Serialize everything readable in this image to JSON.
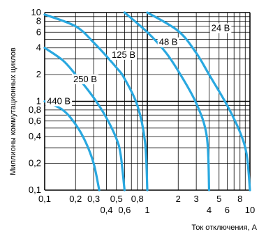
{
  "chart_data": {
    "type": "line",
    "xlabel": "Ток отключения, А",
    "ylabel": "Миллионы коммутационных циклов",
    "xscale": "log",
    "yscale": "log",
    "xlim": [
      0.1,
      10
    ],
    "ylim": [
      0.1,
      10
    ],
    "grid": true,
    "x_tick_labels": [
      {
        "value": 0.1,
        "label": "0,1",
        "row": 1
      },
      {
        "value": 0.2,
        "label": "0,2",
        "row": 1
      },
      {
        "value": 0.3,
        "label": "0,3",
        "row": 1
      },
      {
        "value": 0.4,
        "label": "0,4",
        "row": 2
      },
      {
        "value": 0.5,
        "label": "0,5",
        "row": 1
      },
      {
        "value": 0.6,
        "label": "0,6",
        "row": 2
      },
      {
        "value": 0.8,
        "label": "0,8",
        "row": 1
      },
      {
        "value": 1,
        "label": "1",
        "row": 2
      },
      {
        "value": 2,
        "label": "2",
        "row": 1
      },
      {
        "value": 3,
        "label": "3",
        "row": 1
      },
      {
        "value": 4,
        "label": "4",
        "row": 2
      },
      {
        "value": 5,
        "label": "5",
        "row": 1
      },
      {
        "value": 6,
        "label": "6",
        "row": 2
      },
      {
        "value": 8,
        "label": "8",
        "row": 1
      },
      {
        "value": 10,
        "label": "10",
        "row": 2
      }
    ],
    "y_tick_labels": [
      {
        "value": 10,
        "label": "10"
      },
      {
        "value": 8,
        "label": "8"
      },
      {
        "value": 6,
        "label": "6"
      },
      {
        "value": 4,
        "label": "4"
      },
      {
        "value": 2,
        "label": "2"
      },
      {
        "value": 1,
        "label": "1"
      },
      {
        "value": 0.8,
        "label": "0,8"
      },
      {
        "value": 0.6,
        "label": "0,6"
      },
      {
        "value": 0.4,
        "label": "0,4"
      },
      {
        "value": 0.2,
        "label": "0,2"
      },
      {
        "value": 0.1,
        "label": "0,1"
      }
    ],
    "series": [
      {
        "name": "24 В",
        "label_at": [
          4.2,
          6.2
        ],
        "points": [
          [
            1.0,
            10
          ],
          [
            2.0,
            6.2
          ],
          [
            3.0,
            3.5
          ],
          [
            4.0,
            2.0
          ],
          [
            6.0,
            0.9
          ],
          [
            8.0,
            0.45
          ],
          [
            9.3,
            0.25
          ],
          [
            10.0,
            0.1
          ]
        ]
      },
      {
        "name": "48 В",
        "label_at": [
          1.3,
          4.3
        ],
        "points": [
          [
            0.6,
            10
          ],
          [
            1.0,
            6.0
          ],
          [
            1.5,
            3.6
          ],
          [
            2.0,
            2.2
          ],
          [
            3.0,
            0.95
          ],
          [
            3.8,
            0.4
          ],
          [
            4.0,
            0.1
          ]
        ]
      },
      {
        "name": "125 В",
        "label_at": [
          0.45,
          3.1
        ],
        "points": [
          [
            0.1,
            9.5
          ],
          [
            0.2,
            7.0
          ],
          [
            0.3,
            4.6
          ],
          [
            0.5,
            2.4
          ],
          [
            0.6,
            1.8
          ],
          [
            0.8,
            0.9
          ],
          [
            0.95,
            0.35
          ],
          [
            1.0,
            0.1
          ]
        ]
      },
      {
        "name": "250 В",
        "label_at": [
          0.19,
          1.65
        ],
        "points": [
          [
            0.1,
            4.0
          ],
          [
            0.15,
            2.9
          ],
          [
            0.2,
            2.0
          ],
          [
            0.3,
            1.1
          ],
          [
            0.4,
            0.65
          ],
          [
            0.5,
            0.38
          ],
          [
            0.55,
            0.25
          ],
          [
            0.6,
            0.1
          ]
        ]
      },
      {
        "name": "440 В",
        "label_at": [
          0.105,
          0.93
        ],
        "points": [
          [
            0.1,
            1.0
          ],
          [
            0.15,
            0.8
          ],
          [
            0.2,
            0.55
          ],
          [
            0.25,
            0.35
          ],
          [
            0.3,
            0.2
          ],
          [
            0.34,
            0.1
          ]
        ]
      }
    ],
    "line_color": "#29a8e0",
    "grid_color": "#000000"
  }
}
